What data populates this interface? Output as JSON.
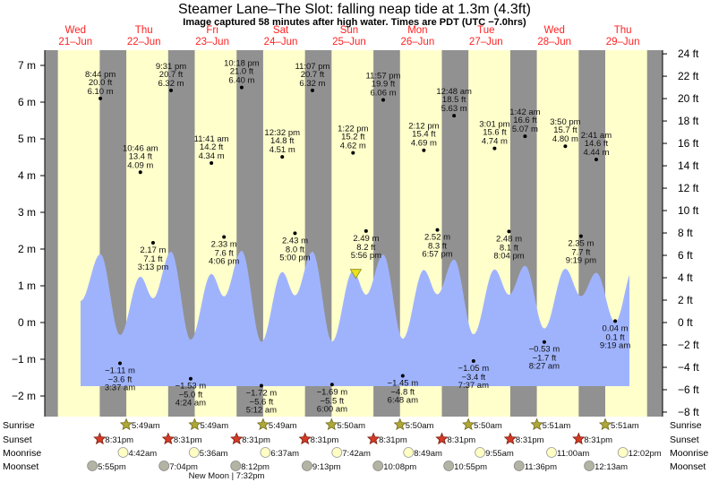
{
  "title": "Steamer Lane–The Slot: falling  neap tide at 1.3m (4.3ft)",
  "subtitle": "Image captured 58 minutes after high water. Times are PDT (UTC −7.0hrs)",
  "colors": {
    "day": "#ffffcc",
    "night": "#919191",
    "water": "#9fb3fd",
    "day_label": "#ff2222",
    "current_marker": "#e8e020"
  },
  "chart_data": {
    "type": "area",
    "title": "Steamer Lane–The Slot: falling  neap tide at 1.3m (4.3ft)",
    "current": {
      "day": 25,
      "time": "2:20 pm",
      "m": 1.3,
      "ft": 4.3,
      "state": "falling"
    },
    "days": [
      {
        "dow": "Wed",
        "date": "21–Jun"
      },
      {
        "dow": "Thu",
        "date": "22–Jun"
      },
      {
        "dow": "Fri",
        "date": "23–Jun"
      },
      {
        "dow": "Sat",
        "date": "24–Jun"
      },
      {
        "dow": "Sun",
        "date": "25–Jun"
      },
      {
        "dow": "Mon",
        "date": "26–Jun"
      },
      {
        "dow": "Tue",
        "date": "27–Jun"
      },
      {
        "dow": "Wed",
        "date": "28–Jun"
      },
      {
        "dow": "Thu",
        "date": "29–Jun"
      }
    ],
    "y_left": {
      "unit": "m",
      "range": [
        -2.5,
        7.5
      ],
      "ticks": [
        "7 m",
        "6 m",
        "5 m",
        "4 m",
        "3 m",
        "2 m",
        "1 m",
        "0 m",
        "−1 m",
        "−2 m"
      ],
      "tick_values": [
        7,
        6,
        5,
        4,
        3,
        2,
        1,
        0,
        -1,
        -2
      ]
    },
    "y_right": {
      "unit": "ft",
      "ticks": [
        "24 ft",
        "22 ft",
        "20 ft",
        "18 ft",
        "16 ft",
        "14 ft",
        "12 ft",
        "10 ft",
        "8 ft",
        "6 ft",
        "4 ft",
        "2 ft",
        "0 ft",
        "−2 ft",
        "−4 ft",
        "−6 ft",
        "−8 ft"
      ],
      "tick_values": [
        24,
        22,
        20,
        18,
        16,
        14,
        12,
        10,
        8,
        6,
        4,
        2,
        0,
        -2,
        -4,
        -6,
        -8
      ]
    },
    "extremes": [
      {
        "type": "high",
        "day": 21,
        "time": "8:44 pm",
        "ft": "20.0 ft",
        "m": "6.10 m",
        "value": 6.1
      },
      {
        "type": "low",
        "day": 22,
        "time": "3:37 am",
        "ft": "−3.6 ft",
        "m": "−1.11 m",
        "value": -1.11
      },
      {
        "type": "high",
        "day": 22,
        "time": "10:46 am",
        "ft": "13.4 ft",
        "m": "4.09 m",
        "value": 4.09
      },
      {
        "type": "low",
        "day": 22,
        "time": "3:13 pm",
        "ft": "7.1 ft",
        "m": "2.17 m",
        "value": 2.17
      },
      {
        "type": "high",
        "day": 22,
        "time": "9:31 pm",
        "ft": "20.7 ft",
        "m": "6.32 m",
        "value": 6.32
      },
      {
        "type": "low",
        "day": 23,
        "time": "4:24 am",
        "ft": "−5.0 ft",
        "m": "−1.53 m",
        "value": -1.53
      },
      {
        "type": "high",
        "day": 23,
        "time": "11:41 am",
        "ft": "14.2 ft",
        "m": "4.34 m",
        "value": 4.34
      },
      {
        "type": "low",
        "day": 23,
        "time": "4:06 pm",
        "ft": "7.6 ft",
        "m": "2.33 m",
        "value": 2.33
      },
      {
        "type": "high",
        "day": 23,
        "time": "10:18 pm",
        "ft": "21.0 ft",
        "m": "6.40 m",
        "value": 6.4
      },
      {
        "type": "low",
        "day": 24,
        "time": "5:12 am",
        "ft": "−5.6 ft",
        "m": "−1.72 m",
        "value": -1.72
      },
      {
        "type": "high",
        "day": 24,
        "time": "12:32 pm",
        "ft": "14.8 ft",
        "m": "4.51 m",
        "value": 4.51
      },
      {
        "type": "low",
        "day": 24,
        "time": "5:00 pm",
        "ft": "8.0 ft",
        "m": "2.43 m",
        "value": 2.43
      },
      {
        "type": "high",
        "day": 24,
        "time": "11:07 pm",
        "ft": "20.7 ft",
        "m": "6.32 m",
        "value": 6.32
      },
      {
        "type": "low",
        "day": 25,
        "time": "6:00 am",
        "ft": "−5.5 ft",
        "m": "−1.69 m",
        "value": -1.69
      },
      {
        "type": "high",
        "day": 25,
        "time": "1:22 pm",
        "ft": "15.2 ft",
        "m": "4.62 m",
        "value": 4.62
      },
      {
        "type": "low",
        "day": 25,
        "time": "5:56 pm",
        "ft": "8.2 ft",
        "m": "2.49 m",
        "value": 2.49
      },
      {
        "type": "high",
        "day": 25,
        "time": "11:57 pm",
        "ft": "19.9 ft",
        "m": "6.06 m",
        "value": 6.06
      },
      {
        "type": "low",
        "day": 26,
        "time": "6:48 am",
        "ft": "−4.8 ft",
        "m": "−1.45 m",
        "value": -1.45
      },
      {
        "type": "high",
        "day": 26,
        "time": "2:12 pm",
        "ft": "15.4 ft",
        "m": "4.69 m",
        "value": 4.69
      },
      {
        "type": "low",
        "day": 26,
        "time": "6:57 pm",
        "ft": "8.3 ft",
        "m": "2.52 m",
        "value": 2.52
      },
      {
        "type": "high",
        "day": 27,
        "time": "12:48 am",
        "ft": "18.5 ft",
        "m": "5.63 m",
        "value": 5.63
      },
      {
        "type": "low",
        "day": 27,
        "time": "7:37 am",
        "ft": "−3.4 ft",
        "m": "−1.05 m",
        "value": -1.05
      },
      {
        "type": "high",
        "day": 27,
        "time": "3:01 pm",
        "ft": "15.6 ft",
        "m": "4.74 m",
        "value": 4.74
      },
      {
        "type": "low",
        "day": 27,
        "time": "8:04 pm",
        "ft": "8.1 ft",
        "m": "2.48 m",
        "value": 2.48
      },
      {
        "type": "high",
        "day": 28,
        "time": "1:42 am",
        "ft": "16.6 ft",
        "m": "5.07 m",
        "value": 5.07
      },
      {
        "type": "low",
        "day": 28,
        "time": "8:27 am",
        "ft": "−1.7 ft",
        "m": "−0.53 m",
        "value": -0.53
      },
      {
        "type": "high",
        "day": 28,
        "time": "3:50 pm",
        "ft": "15.7 ft",
        "m": "4.80 m",
        "value": 4.8
      },
      {
        "type": "low",
        "day": 28,
        "time": "9:19 pm",
        "ft": "7.7 ft",
        "m": "2.35 m",
        "value": 2.35
      },
      {
        "type": "high",
        "day": 29,
        "time": "2:41 am",
        "ft": "14.6 ft",
        "m": "4.44 m",
        "value": 4.44
      },
      {
        "type": "low",
        "day": 29,
        "time": "9:19 am",
        "ft": "0.1 ft",
        "m": "0.04 m",
        "value": 0.04
      }
    ],
    "rows": {
      "sunrise": {
        "label": "Sunrise",
        "events": [
          {
            "day": 22,
            "time": "5:49am"
          },
          {
            "day": 23,
            "time": "5:49am"
          },
          {
            "day": 24,
            "time": "5:49am"
          },
          {
            "day": 25,
            "time": "5:50am"
          },
          {
            "day": 26,
            "time": "5:50am"
          },
          {
            "day": 27,
            "time": "5:50am"
          },
          {
            "day": 28,
            "time": "5:51am"
          },
          {
            "day": 29,
            "time": "5:51am"
          }
        ]
      },
      "sunset": {
        "label": "Sunset",
        "events": [
          {
            "day": 21,
            "time": "8:31pm"
          },
          {
            "day": 22,
            "time": "8:31pm"
          },
          {
            "day": 23,
            "time": "8:31pm"
          },
          {
            "day": 24,
            "time": "8:31pm"
          },
          {
            "day": 25,
            "time": "8:31pm"
          },
          {
            "day": 26,
            "time": "8:31pm"
          },
          {
            "day": 27,
            "time": "8:31pm"
          },
          {
            "day": 28,
            "time": "8:31pm"
          }
        ]
      },
      "moonrise": {
        "label": "Moonrise",
        "events": [
          {
            "day": 22,
            "time": "4:42am"
          },
          {
            "day": 23,
            "time": "5:36am"
          },
          {
            "day": 24,
            "time": "6:37am"
          },
          {
            "day": 25,
            "time": "7:42am"
          },
          {
            "day": 26,
            "time": "8:49am"
          },
          {
            "day": 27,
            "time": "9:55am"
          },
          {
            "day": 28,
            "time": "11:00am"
          },
          {
            "day": 29,
            "time": "12:02pm"
          }
        ]
      },
      "moonset": {
        "label": "Moonset",
        "events": [
          {
            "day": 21,
            "time": "5:55pm"
          },
          {
            "day": 22,
            "time": "7:04pm"
          },
          {
            "day": 23,
            "time": "8:12pm"
          },
          {
            "day": 24,
            "time": "9:13pm"
          },
          {
            "day": 25,
            "time": "10:08pm"
          },
          {
            "day": 26,
            "time": "10:55pm"
          },
          {
            "day": 27,
            "time": "11:36pm"
          },
          {
            "day": 29,
            "time": "12:13am"
          }
        ]
      }
    },
    "moon_phase": {
      "label": "New Moon | 7:32pm",
      "day": 23,
      "time": "7:32pm"
    }
  }
}
